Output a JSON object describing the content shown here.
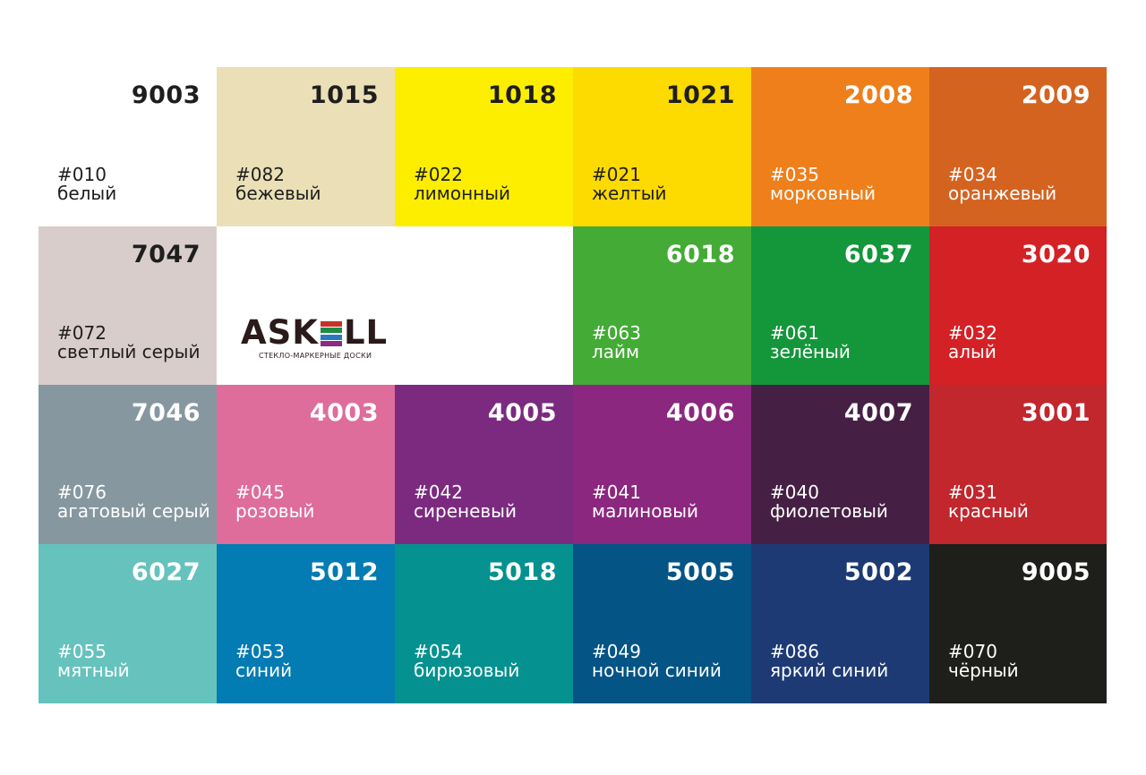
{
  "logo": {
    "word_start": "ASK",
    "word_end": "LL",
    "tagline": "СТЕКЛО-МАРКЕРНЫЕ ДОСКИ",
    "stripe_colors": [
      "#c4332b",
      "#1c8c43",
      "#2c78c0",
      "#8a2b82"
    ]
  },
  "rows": [
    [
      {
        "ral": "9003",
        "code": "#010",
        "name": "белый",
        "color": "#ffffff",
        "text": "#1e1e1e"
      },
      {
        "ral": "1015",
        "code": "#082",
        "name": "бежевый",
        "color": "#ebdfb7",
        "text": "#1e1e1e"
      },
      {
        "ral": "1018",
        "code": "#022",
        "name": "лимонный",
        "color": "#fdee00",
        "text": "#1e1e1e"
      },
      {
        "ral": "1021",
        "code": "#021",
        "name": "желтый",
        "color": "#fdda00",
        "text": "#1e1e1e"
      },
      {
        "ral": "2008",
        "code": "#035",
        "name": "морковный",
        "color": "#ee7f1b",
        "text": "#ffffff"
      },
      {
        "ral": "2009",
        "code": "#034",
        "name": "оранжевый",
        "color": "#d56320",
        "text": "#ffffff"
      }
    ],
    [
      {
        "ral": "7047",
        "code": "#072",
        "name": "светлый серый",
        "color": "#d9cdcc",
        "text": "#1e1e1e"
      },
      {
        "logo": true
      },
      {
        "ral": "6018",
        "code": "#063",
        "name": "лайм",
        "color": "#43ab36",
        "text": "#ffffff"
      },
      {
        "ral": "6037",
        "code": "#061",
        "name": "зелёный",
        "color": "#14963a",
        "text": "#ffffff"
      },
      {
        "ral": "3020",
        "code": "#032",
        "name": "алый",
        "color": "#d42126",
        "text": "#ffffff"
      }
    ],
    [
      {
        "ral": "7046",
        "code": "#076",
        "name": "агатовый серый",
        "color": "#86979f",
        "text": "#ffffff"
      },
      {
        "ral": "4003",
        "code": "#045",
        "name": "розовый",
        "color": "#de6d9c",
        "text": "#ffffff"
      },
      {
        "ral": "4005",
        "code": "#042",
        "name": "сиреневый",
        "color": "#7b2a80",
        "text": "#ffffff"
      },
      {
        "ral": "4006",
        "code": "#041",
        "name": "малиновый",
        "color": "#8b277e",
        "text": "#ffffff"
      },
      {
        "ral": "4007",
        "code": "#040",
        "name": "фиолетовый",
        "color": "#462044",
        "text": "#ffffff"
      },
      {
        "ral": "3001",
        "code": "#031",
        "name": "красный",
        "color": "#c1272d",
        "text": "#ffffff"
      }
    ],
    [
      {
        "ral": "6027",
        "code": "#055",
        "name": "мятный",
        "color": "#66c2bd",
        "text": "#ffffff"
      },
      {
        "ral": "5012",
        "code": "#053",
        "name": "синий",
        "color": "#037bb3",
        "text": "#ffffff"
      },
      {
        "ral": "5018",
        "code": "#054",
        "name": "бирюзовый",
        "color": "#04918f",
        "text": "#ffffff"
      },
      {
        "ral": "5005",
        "code": "#049",
        "name": "ночной синий",
        "color": "#045485",
        "text": "#ffffff"
      },
      {
        "ral": "5002",
        "code": "#086",
        "name": "яркий синий",
        "color": "#1d3a74",
        "text": "#ffffff"
      },
      {
        "ral": "9005",
        "code": "#070",
        "name": "чёрный",
        "color": "#1e1e1a",
        "text": "#ffffff"
      }
    ]
  ]
}
